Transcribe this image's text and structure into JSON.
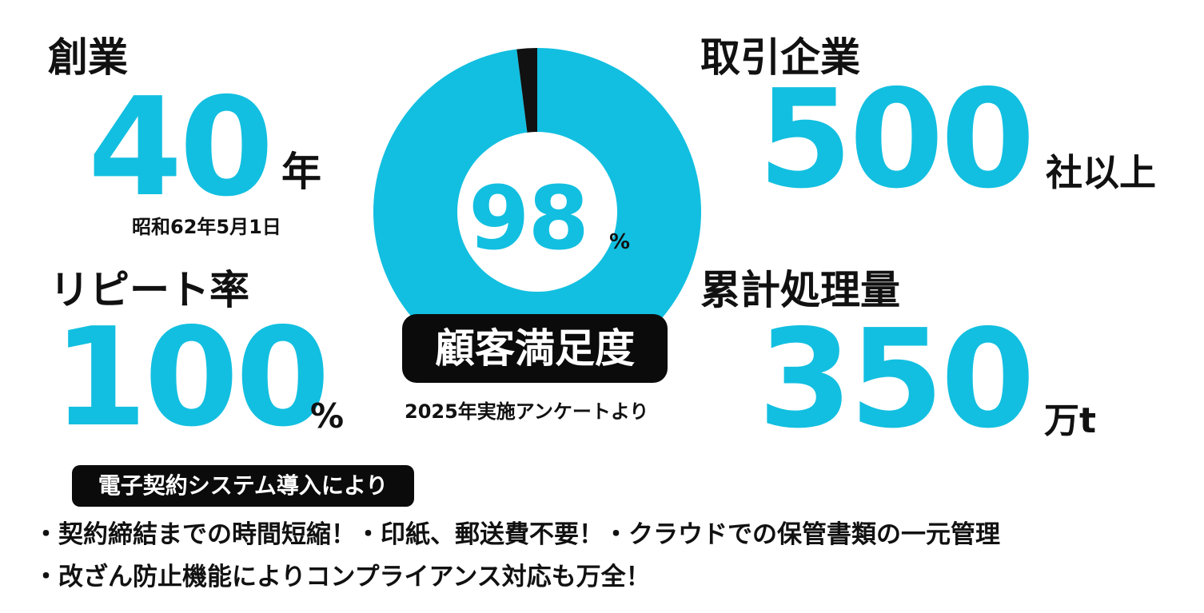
{
  "founding": {
    "label": "創業",
    "value": "40",
    "unit": "年",
    "date": "昭和62年5月1日"
  },
  "repeat_rate": {
    "label": "リピート率",
    "value": "100",
    "unit": "%"
  },
  "satisfaction": {
    "value": "98",
    "unit": "%",
    "percent": 98,
    "badge": "顧客満足度",
    "source": "2025年実施アンケートより"
  },
  "clients": {
    "label": "取引企業",
    "value": "500",
    "unit": "社以上"
  },
  "volume": {
    "label": "累計処理量",
    "value": "350",
    "unit": "万t"
  },
  "e_contract": {
    "badge": "電子契約システム導入により",
    "line1": "・契約締結までの時間短縮！・印紙、郵送費不要！・クラウドでの保管書類の一元管理",
    "line2": "・改ざん防止機能によりコンプライアンス対応も万全！"
  },
  "colors": {
    "accent": "#12bfe0",
    "dark": "#111111",
    "background": "#ffffff"
  }
}
